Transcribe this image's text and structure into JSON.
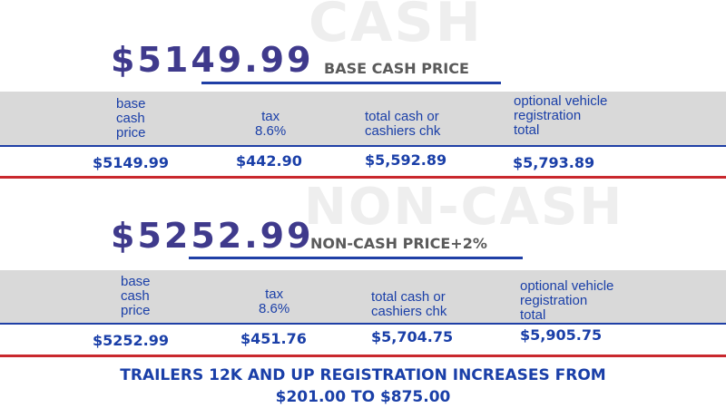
{
  "cash": {
    "watermark": "CASH",
    "price": "$5149.99",
    "label": "BASE CASH PRICE",
    "headers": {
      "base": [
        "base",
        "cash",
        "price"
      ],
      "tax": [
        "tax",
        "8.6%"
      ],
      "total": [
        "total cash or",
        "cashiers chk"
      ],
      "optional": [
        "optional vehicle",
        "registration",
        "total"
      ]
    },
    "values": {
      "base": "$5149.99",
      "tax": "$442.90",
      "total": "$5,592.89",
      "optional": "$5,793.89"
    }
  },
  "noncash": {
    "watermark": "NON-CASH",
    "price": "$5252.99",
    "label": "NON-CASH PRICE+2%",
    "headers": {
      "base": [
        "base",
        "cash",
        "price"
      ],
      "tax": [
        "tax",
        "8.6%"
      ],
      "total": [
        "total cash or",
        "cashiers chk"
      ],
      "optional": [
        "optional vehicle",
        "registration",
        "total"
      ]
    },
    "values": {
      "base": "$5252.99",
      "tax": "$451.76",
      "total": "$5,704.75",
      "optional": "$5,905.75"
    }
  },
  "footer": {
    "line1": "TRAILERS 12K AND UP REGISTRATION INCREASES FROM",
    "line2": "$201.00 TO $875.00"
  }
}
